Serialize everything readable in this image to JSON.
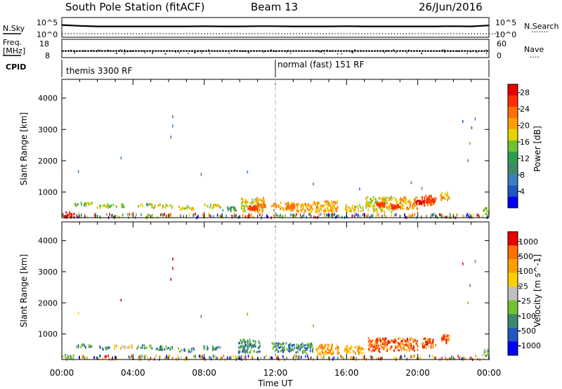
{
  "header": {
    "station": "South Pole Station (fitACF)",
    "beam": "Beam 13",
    "date": "26/Jun/2016"
  },
  "panels": {
    "nsky": {
      "label": "N.Sky",
      "left_ticks": [
        "10^5",
        "10^0"
      ],
      "right_ticks": [
        "10^5",
        "10^0"
      ],
      "right_label": "N.Search",
      "right_legend": "·······"
    },
    "freq": {
      "label_line1": "Freq.",
      "label_line2": "[MHz]",
      "left_ticks": [
        "18",
        "8"
      ],
      "right_ticks": [
        "60",
        "0"
      ],
      "right_label": "Nave",
      "right_legend": "····"
    },
    "cpid": {
      "label": "CPID",
      "segments": [
        {
          "label": "themis 3300 RF",
          "start_hour": 0
        },
        {
          "label": "normal (fast) 151 RF",
          "start_hour": 12
        }
      ]
    }
  },
  "colors": {
    "power": [
      "#0000ff",
      "#2255c0",
      "#3a7fc0",
      "#3d8a6a",
      "#2e9e4c",
      "#72c230",
      "#e6d400",
      "#ffa000",
      "#ff7000",
      "#ff3000",
      "#e80000"
    ],
    "velocity": [
      "#0000ff",
      "#2255c0",
      "#3d8a6a",
      "#72c230",
      "#c0c0c0",
      "#ffd000",
      "#ffa000",
      "#ff7000",
      "#e80000"
    ]
  },
  "chart_data": [
    {
      "type": "heatmap",
      "name": "power",
      "ylabel": "Slant Range [km]",
      "ylim": [
        180,
        4600
      ],
      "yticks": [
        1000,
        2000,
        3000,
        4000
      ],
      "xlim": [
        0,
        24
      ],
      "colorbar": {
        "label": "Power [dB]",
        "range": [
          0,
          30
        ],
        "ticks": [
          "28",
          "24",
          "20",
          "16",
          "12",
          "8",
          "4"
        ]
      },
      "cells": [
        [
          0.4,
          300,
          11,
          0.6,
          180
        ],
        [
          1.2,
          650,
          5,
          1.0,
          120
        ],
        [
          2.3,
          580,
          6,
          0.7,
          100
        ],
        [
          3.0,
          600,
          5,
          1.0,
          100
        ],
        [
          4.6,
          620,
          5,
          0.8,
          100
        ],
        [
          5.6,
          580,
          6,
          1.2,
          120
        ],
        [
          7.0,
          520,
          6,
          1.0,
          120
        ],
        [
          8.4,
          580,
          6,
          1.0,
          120
        ],
        [
          9.4,
          500,
          4,
          0.8,
          140
        ],
        [
          10.5,
          620,
          6,
          0.9,
          420
        ],
        [
          11.1,
          620,
          7,
          0.5,
          480
        ],
        [
          12.4,
          570,
          7,
          1.3,
          260
        ],
        [
          13.6,
          520,
          7,
          1.0,
          300
        ],
        [
          14.8,
          570,
          7,
          1.4,
          360
        ],
        [
          16.4,
          520,
          6,
          1.0,
          240
        ],
        [
          17.8,
          640,
          6,
          1.6,
          480
        ],
        [
          19.3,
          680,
          7,
          1.3,
          380
        ],
        [
          20.6,
          760,
          8,
          0.8,
          320
        ],
        [
          21.5,
          900,
          7,
          0.5,
          280
        ],
        [
          23.8,
          440,
          5,
          0.4,
          220
        ]
      ],
      "hot_spots": [
        [
          10.7,
          520,
          9
        ],
        [
          11.2,
          600,
          8
        ],
        [
          12.8,
          560,
          8
        ],
        [
          17.9,
          620,
          9
        ],
        [
          18.7,
          560,
          9
        ],
        [
          20.1,
          700,
          10
        ],
        [
          20.7,
          760,
          9
        ]
      ],
      "scatter": [
        [
          6.2,
          3450,
          3
        ],
        [
          6.2,
          3150,
          2
        ],
        [
          6.1,
          2800,
          2
        ],
        [
          3.3,
          2130,
          2
        ],
        [
          0.9,
          1700,
          2
        ],
        [
          7.8,
          1610,
          3
        ],
        [
          10.4,
          1680,
          2
        ],
        [
          23.0,
          3100,
          1
        ],
        [
          22.5,
          3300,
          1
        ],
        [
          23.2,
          3380,
          2
        ],
        [
          22.9,
          2600,
          5
        ],
        [
          22.8,
          2050,
          3
        ],
        [
          14.1,
          1300,
          3
        ],
        [
          16.7,
          1140,
          2
        ],
        [
          19.6,
          1340,
          3
        ],
        [
          20.2,
          1160,
          3
        ]
      ]
    },
    {
      "type": "heatmap",
      "name": "velocity",
      "ylabel": "Slant Range [km]",
      "ylim": [
        180,
        4600
      ],
      "yticks": [
        1000,
        2000,
        3000,
        4000
      ],
      "xlim": [
        0,
        24
      ],
      "xlabel": "Time UT",
      "xticks": [
        "00:00",
        "04:00",
        "08:00",
        "12:00",
        "16:00",
        "20:00",
        "00:00"
      ],
      "colorbar": {
        "label": "Velocity [m s^-1]",
        "ticks": [
          "1000",
          "500",
          "100",
          "25",
          "-25",
          "-100",
          "-500",
          "-1000"
        ]
      },
      "cells": [
        [
          0.4,
          300,
          3,
          0.5,
          160
        ],
        [
          1.2,
          650,
          2,
          0.9,
          120
        ],
        [
          2.3,
          580,
          2,
          0.7,
          100
        ],
        [
          3.4,
          620,
          5,
          1.0,
          100
        ],
        [
          4.6,
          620,
          2,
          0.8,
          100
        ],
        [
          5.6,
          580,
          2,
          1.2,
          120
        ],
        [
          7.0,
          520,
          2,
          1.0,
          120
        ],
        [
          8.4,
          580,
          2,
          1.0,
          120
        ],
        [
          10.5,
          640,
          2,
          1.2,
          440
        ],
        [
          12.4,
          600,
          2,
          1.3,
          300
        ],
        [
          13.6,
          560,
          2,
          1.0,
          340
        ],
        [
          14.9,
          540,
          6,
          1.3,
          320
        ],
        [
          16.4,
          520,
          6,
          1.1,
          260
        ],
        [
          17.9,
          680,
          7,
          1.4,
          440
        ],
        [
          19.3,
          700,
          7,
          1.4,
          400
        ],
        [
          20.6,
          740,
          7,
          0.8,
          320
        ],
        [
          21.5,
          880,
          7,
          0.5,
          280
        ],
        [
          23.8,
          440,
          3,
          0.4,
          220
        ]
      ],
      "scatter": [
        [
          6.2,
          3450,
          8
        ],
        [
          6.2,
          3150,
          8
        ],
        [
          6.1,
          2800,
          8
        ],
        [
          3.3,
          2130,
          8
        ],
        [
          0.9,
          1700,
          5
        ],
        [
          7.8,
          1610,
          2
        ],
        [
          10.4,
          1680,
          3
        ],
        [
          22.5,
          3300,
          8
        ],
        [
          23.2,
          3380,
          2
        ],
        [
          22.9,
          2600,
          2
        ],
        [
          22.8,
          2050,
          3
        ],
        [
          14.1,
          1300,
          3
        ]
      ]
    },
    {
      "type": "line",
      "name": "nsky",
      "series": [
        {
          "values": [
            0.62,
            0.58,
            0.55,
            0.55,
            0.55,
            0.55,
            0.55,
            0.55,
            0.56,
            0.55,
            0.55,
            0.56,
            0.56,
            0.55,
            0.55,
            0.55,
            0.56,
            0.55,
            0.55,
            0.55,
            0.55,
            0.55,
            0.56,
            0.55,
            0.6
          ]
        },
        {
          "values": [
            0.2,
            0.2,
            0.2,
            0.2,
            0.2,
            0.2,
            0.2,
            0.2,
            0.2,
            0.2,
            0.2,
            0.2,
            0.2,
            0.2,
            0.2,
            0.2,
            0.2,
            0.2,
            0.2,
            0.2,
            0.2,
            0.2,
            0.2,
            0.2,
            0.2
          ]
        }
      ]
    },
    {
      "type": "line",
      "name": "freq",
      "ylim": [
        8,
        18
      ],
      "series": [
        {
          "values": [
            11.6,
            11.6,
            11.6,
            11.6,
            11.6,
            11.6,
            11.6,
            11.6,
            11.6,
            11.6,
            11.6,
            11.6,
            11.6,
            11.6,
            11.6,
            11.6,
            11.6,
            11.6,
            11.6,
            11.6,
            11.6,
            11.6,
            11.6,
            11.6,
            11.6
          ]
        }
      ]
    }
  ]
}
